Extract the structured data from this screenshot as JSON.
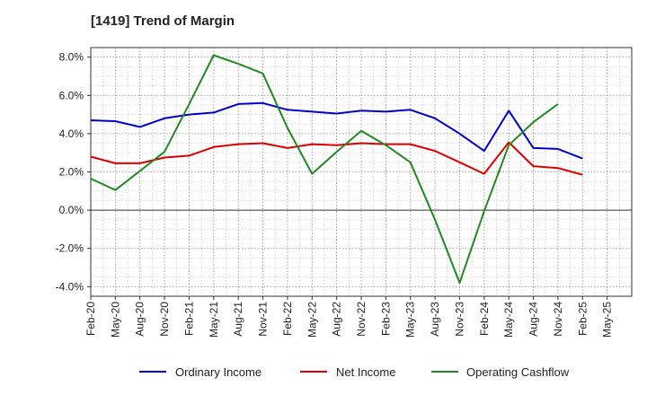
{
  "chart_data": {
    "type": "line",
    "title": "[1419]  Trend of Margin",
    "x": [
      "Feb-20",
      "May-20",
      "Aug-20",
      "Nov-20",
      "Feb-21",
      "May-21",
      "Aug-21",
      "Nov-21",
      "Feb-22",
      "May-22",
      "Aug-22",
      "Nov-22",
      "Feb-23",
      "May-23",
      "Aug-23",
      "Nov-23",
      "Feb-24",
      "May-24",
      "Aug-24",
      "Nov-24",
      "Feb-25",
      "May-25"
    ],
    "y_ticks": [
      "8.0%",
      "6.0%",
      "4.0%",
      "2.0%",
      "0.0%",
      "-2.0%",
      "-4.0%"
    ],
    "y_tick_values": [
      8,
      6,
      4,
      2,
      0,
      -2,
      -4
    ],
    "ylim": [
      -4.5,
      8.5
    ],
    "xlabel": "",
    "ylabel": "",
    "grid": true,
    "legend_position": "bottom",
    "series": [
      {
        "name": "Ordinary Income",
        "color": "#0000cc",
        "values": [
          4.7,
          4.65,
          4.35,
          4.8,
          5.0,
          5.1,
          5.55,
          5.6,
          5.25,
          5.15,
          5.05,
          5.2,
          5.15,
          5.25,
          4.8,
          4.0,
          3.1,
          5.2,
          3.25,
          3.2,
          2.7,
          null
        ]
      },
      {
        "name": "Net Income",
        "color": "#dd0000",
        "values": [
          2.8,
          2.45,
          2.45,
          2.75,
          2.85,
          3.3,
          3.45,
          3.5,
          3.25,
          3.45,
          3.4,
          3.5,
          3.45,
          3.45,
          3.1,
          2.5,
          1.9,
          3.55,
          2.3,
          2.2,
          1.85,
          null
        ]
      },
      {
        "name": "Operating Cashflow",
        "color": "#228822",
        "values": [
          1.65,
          1.05,
          2.05,
          3.05,
          5.55,
          8.1,
          7.65,
          7.15,
          4.3,
          1.9,
          3.05,
          4.15,
          3.4,
          2.5,
          -0.5,
          -3.8,
          -0.05,
          3.4,
          4.6,
          5.55,
          null,
          null
        ]
      }
    ]
  }
}
